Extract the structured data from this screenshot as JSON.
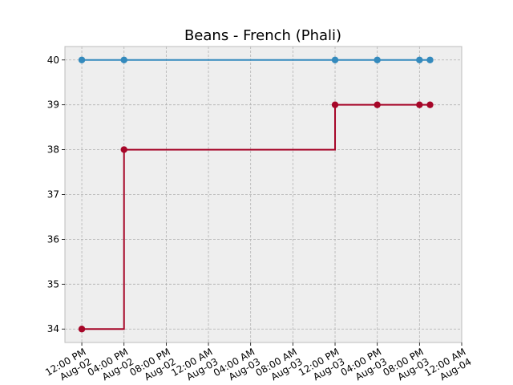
{
  "chart_data": {
    "type": "line",
    "step": "post",
    "title": "Beans - French (Phali)",
    "xlabel": "",
    "ylabel": "",
    "ylim": [
      33.7,
      40.3
    ],
    "xlim": [
      "2024-08-02T10:24",
      "2024-08-04T00:00"
    ],
    "yticks": [
      34,
      35,
      36,
      37,
      38,
      39,
      40
    ],
    "xticks": [
      {
        "at": "2024-08-02T12:00",
        "label": [
          "12:00 PM",
          "Aug-02"
        ]
      },
      {
        "at": "2024-08-02T16:00",
        "label": [
          "04:00 PM",
          "Aug-02"
        ]
      },
      {
        "at": "2024-08-02T20:00",
        "label": [
          "08:00 PM",
          "Aug-02"
        ]
      },
      {
        "at": "2024-08-03T00:00",
        "label": [
          "12:00 AM",
          "Aug-03"
        ]
      },
      {
        "at": "2024-08-03T04:00",
        "label": [
          "04:00 AM",
          "Aug-03"
        ]
      },
      {
        "at": "2024-08-03T08:00",
        "label": [
          "08:00 AM",
          "Aug-03"
        ]
      },
      {
        "at": "2024-08-03T12:00",
        "label": [
          "12:00 PM",
          "Aug-03"
        ]
      },
      {
        "at": "2024-08-03T16:00",
        "label": [
          "04:00 PM",
          "Aug-03"
        ]
      },
      {
        "at": "2024-08-03T20:00",
        "label": [
          "08:00 PM",
          "Aug-03"
        ]
      },
      {
        "at": "2024-08-04T00:00",
        "label": [
          "12:00 AM",
          "Aug-04"
        ]
      }
    ],
    "grid": true,
    "series": [
      {
        "color": "#348abd",
        "x": [
          "2024-08-02T12:00",
          "2024-08-02T16:00",
          "2024-08-03T12:00",
          "2024-08-03T16:00",
          "2024-08-03T20:00",
          "2024-08-03T21:00"
        ],
        "y": [
          40,
          40,
          40,
          40,
          40,
          40
        ]
      },
      {
        "color": "#a60628",
        "x": [
          "2024-08-02T12:00",
          "2024-08-02T16:00",
          "2024-08-03T12:00",
          "2024-08-03T16:00",
          "2024-08-03T20:00",
          "2024-08-03T21:00"
        ],
        "y": [
          34,
          38,
          39,
          39,
          39,
          39
        ]
      }
    ]
  }
}
